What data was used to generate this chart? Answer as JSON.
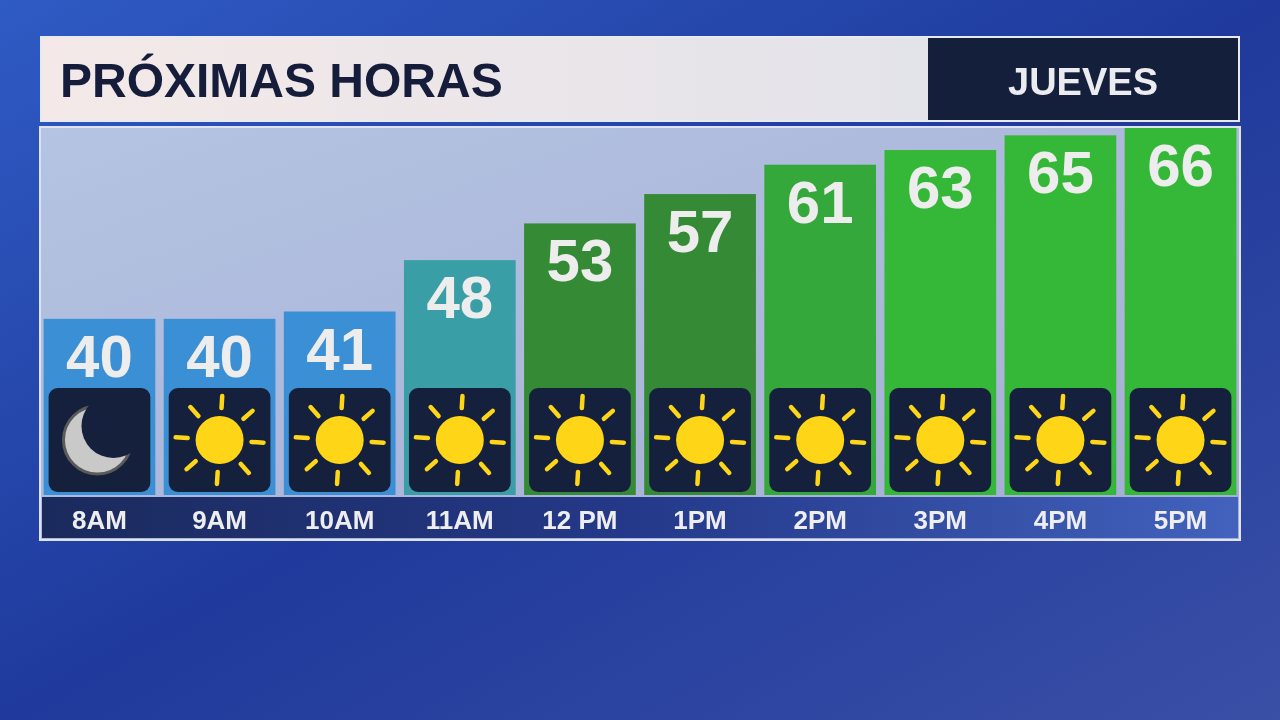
{
  "chart_data": {
    "type": "bar",
    "title": "PRÓXIMAS HORAS",
    "subtitle": "JUEVES",
    "categories": [
      "8AM",
      "9AM",
      "10AM",
      "11AM",
      "12 PM",
      "1PM",
      "2PM",
      "3PM",
      "4PM",
      "5PM"
    ],
    "values": [
      40,
      40,
      41,
      48,
      53,
      57,
      61,
      63,
      65,
      66
    ],
    "colors": [
      "#3a8fd5",
      "#3a8fd5",
      "#3a8fd5",
      "#3a9ea6",
      "#358a35",
      "#358a35",
      "#34a83a",
      "#35b838",
      "#35b838",
      "#35b838"
    ],
    "ylim": [
      16,
      66
    ],
    "tick_labels": "x",
    "data_labels": true
  }
}
